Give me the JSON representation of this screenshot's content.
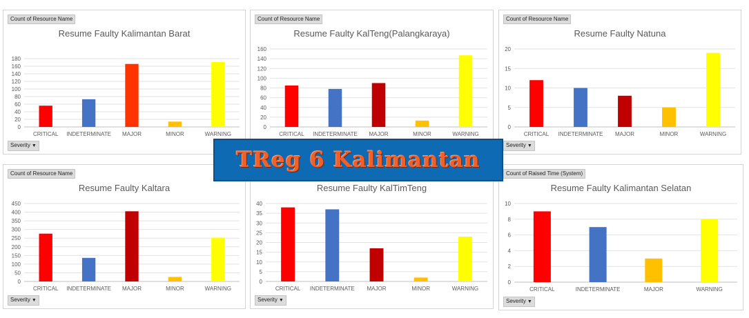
{
  "banner": {
    "text": "TReg 6 Kalimantan"
  },
  "colors": {
    "critical": "#ff0000",
    "indeterminate": "#4472c4",
    "major_a": "#ff3300",
    "major_b": "#c00000",
    "minor": "#ffc000",
    "warning": "#ffff00"
  },
  "chart_data": [
    {
      "type": "bar",
      "title": "Resume Faulty Kalimantan Barat",
      "field_label": "Count of Resource Name",
      "filter_label": "Severity",
      "categories": [
        "CRITICAL",
        "INDETERMINATE",
        "MAJOR",
        "MINOR",
        "WARNING"
      ],
      "values": [
        56,
        73,
        166,
        14,
        171
      ],
      "bar_colors": [
        "#ff0000",
        "#4472c4",
        "#ff3300",
        "#ffc000",
        "#ffff00"
      ],
      "ylim": [
        0,
        180
      ],
      "yticks": [
        0,
        20,
        40,
        60,
        80,
        100,
        120,
        140,
        160,
        180
      ],
      "grid": true
    },
    {
      "type": "bar",
      "title": "Resume Faulty KalTeng(Palangkaraya)",
      "field_label": "Count of Resource Name",
      "filter_label": "",
      "categories": [
        "CRITICAL",
        "INDETERMINATE",
        "MAJOR",
        "MINOR",
        "WARNING"
      ],
      "values": [
        85,
        78,
        90,
        13,
        147
      ],
      "bar_colors": [
        "#ff0000",
        "#4472c4",
        "#c00000",
        "#ffc000",
        "#ffff00"
      ],
      "ylim": [
        0,
        160
      ],
      "yticks": [
        0,
        20,
        40,
        60,
        80,
        100,
        120,
        140,
        160
      ],
      "grid": true
    },
    {
      "type": "bar",
      "title": "Resume Faulty Natuna",
      "field_label": "Count of Resource Name",
      "filter_label": "Severity",
      "categories": [
        "CRITICAL",
        "INDETERMINATE",
        "MAJOR",
        "MINOR",
        "WARNING"
      ],
      "values": [
        12,
        10,
        8,
        5,
        19
      ],
      "bar_colors": [
        "#ff0000",
        "#4472c4",
        "#c00000",
        "#ffc000",
        "#ffff00"
      ],
      "ylim": [
        0,
        20
      ],
      "yticks": [
        0,
        5,
        10,
        15,
        20
      ],
      "grid": true
    },
    {
      "type": "bar",
      "title": "Resume Faulty Kaltara",
      "field_label": "Count of Resource Name",
      "filter_label": "Severity",
      "categories": [
        "CRITICAL",
        "INDETERMINATE",
        "MAJOR",
        "MINOR",
        "WARNING"
      ],
      "values": [
        276,
        136,
        405,
        26,
        253
      ],
      "bar_colors": [
        "#ff0000",
        "#4472c4",
        "#c00000",
        "#ffc000",
        "#ffff00"
      ],
      "ylim": [
        0,
        450
      ],
      "yticks": [
        0,
        50,
        100,
        150,
        200,
        250,
        300,
        350,
        400,
        450
      ],
      "grid": true
    },
    {
      "type": "bar",
      "title": "Resume Faulty KalTimTeng",
      "field_label": "",
      "filter_label": "Severity",
      "categories": [
        "CRITICAL",
        "INDETERMINATE",
        "MAJOR",
        "MINOR",
        "WARNING"
      ],
      "values": [
        38,
        37,
        17,
        2,
        23
      ],
      "bar_colors": [
        "#ff0000",
        "#4472c4",
        "#c00000",
        "#ffc000",
        "#ffff00"
      ],
      "ylim": [
        0,
        40
      ],
      "yticks": [
        0,
        5,
        10,
        15,
        20,
        25,
        30,
        35,
        40
      ],
      "grid": true
    },
    {
      "type": "bar",
      "title": "Resume Faulty Kalimantan Selatan",
      "field_label": "Count of Raised Time  (System)",
      "filter_label": "Severity",
      "categories": [
        "CRITICAL",
        "INDETERMINATE",
        "MAJOR",
        "WARNING"
      ],
      "values": [
        9,
        7,
        3,
        8
      ],
      "bar_colors": [
        "#ff0000",
        "#4472c4",
        "#ffc000",
        "#ffff00"
      ],
      "ylim": [
        0,
        10
      ],
      "yticks": [
        0,
        2,
        4,
        6,
        8,
        10
      ],
      "grid": true
    }
  ]
}
